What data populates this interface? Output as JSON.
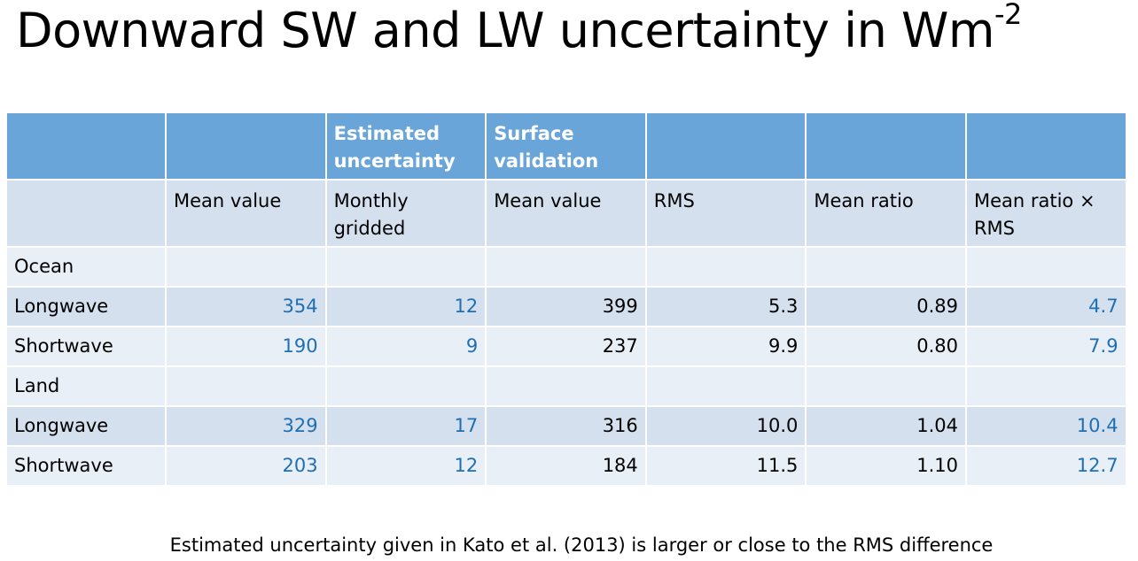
{
  "title": {
    "text": "Downward SW and LW uncertainty in Wm",
    "superscript": "-2"
  },
  "table": {
    "header": [
      "",
      "",
      "Estimated uncertainty",
      "Surface validation",
      "",
      "",
      ""
    ],
    "subheader": [
      "",
      "Mean value",
      "Monthly gridded",
      "Mean value",
      "RMS",
      "Mean ratio",
      "Mean ratio × RMS"
    ],
    "rows": [
      {
        "section": "Ocean"
      },
      {
        "cells": [
          "Longwave",
          "354",
          "12",
          "399",
          "5.3",
          "0.89",
          "4.7"
        ]
      },
      {
        "cells": [
          "Shortwave",
          "190",
          "9",
          "237",
          "9.9",
          "0.80",
          "7.9"
        ]
      },
      {
        "section": "Land"
      },
      {
        "cells": [
          "Longwave",
          "329",
          "17",
          "316",
          "10.0",
          "1.04",
          "10.4"
        ]
      },
      {
        "cells": [
          "Shortwave",
          "203",
          "12",
          "184",
          "11.5",
          "1.10",
          "12.7"
        ]
      }
    ],
    "colors": {
      "header_bg": "#6aa5d9",
      "row_dark": "#d4e0ee",
      "row_light": "#e9eff7",
      "blue_text": "#1f6fb3"
    }
  },
  "footnote": "Estimated uncertainty given in Kato et al. (2013) is larger or close to the RMS difference"
}
